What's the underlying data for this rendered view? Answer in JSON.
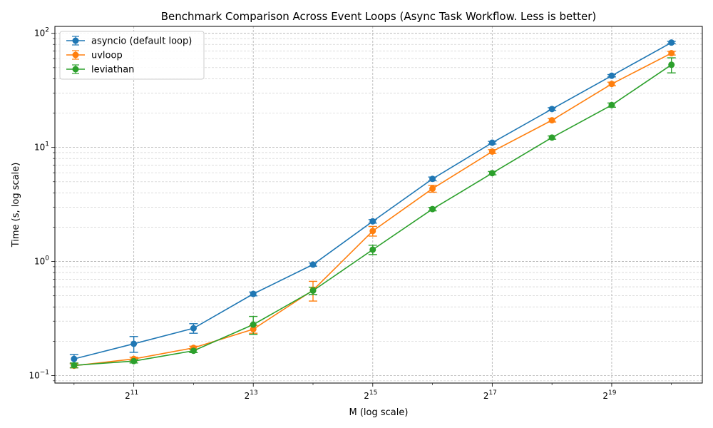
{
  "chart_data": {
    "type": "line",
    "title": "Benchmark Comparison Across Event Loops (Async Task Workflow. Less is better)",
    "xlabel": "M (log scale)",
    "ylabel": "Time (s, log scale)",
    "x_scale": "log2",
    "y_scale": "log10",
    "x": [
      1024,
      2048,
      4096,
      8192,
      16384,
      32768,
      65536,
      131072,
      262144,
      524288,
      1048576
    ],
    "x_ticks": [
      {
        "value": 2048,
        "base": "2",
        "exp": "11"
      },
      {
        "value": 8192,
        "base": "2",
        "exp": "13"
      },
      {
        "value": 32768,
        "base": "2",
        "exp": "15"
      },
      {
        "value": 131072,
        "base": "2",
        "exp": "17"
      },
      {
        "value": 524288,
        "base": "2",
        "exp": "19"
      }
    ],
    "y_ticks": [
      {
        "value": 0.1,
        "base": "10",
        "exp": "−1"
      },
      {
        "value": 1,
        "base": "10",
        "exp": "0"
      },
      {
        "value": 10,
        "base": "10",
        "exp": "1"
      },
      {
        "value": 100,
        "base": "10",
        "exp": "2"
      }
    ],
    "xlim": [
      820,
      1500000
    ],
    "ylim": [
      0.086,
      115
    ],
    "grid": true,
    "legend_position": "top-left",
    "series": [
      {
        "name": "asyncio (default loop)",
        "color": "#1f77b4",
        "values": [
          0.14,
          0.19,
          0.26,
          0.52,
          0.94,
          2.25,
          5.3,
          11.0,
          21.7,
          42.5,
          83.0
        ],
        "err": [
          0.013,
          0.03,
          0.025,
          0.02,
          0.03,
          0.08,
          0.2,
          0.3,
          0.6,
          1.0,
          2.0
        ]
      },
      {
        "name": "uvloop",
        "color": "#ff7f0e",
        "values": [
          0.122,
          0.14,
          0.175,
          0.255,
          0.56,
          1.85,
          4.35,
          9.2,
          17.3,
          36.0,
          67.0
        ],
        "err": [
          0.005,
          0.005,
          0.006,
          0.02,
          0.11,
          0.18,
          0.3,
          0.35,
          0.6,
          1.3,
          2.5
        ]
      },
      {
        "name": "leviathan",
        "color": "#2ca02c",
        "values": [
          0.123,
          0.134,
          0.165,
          0.28,
          0.555,
          1.27,
          2.88,
          5.95,
          12.2,
          23.5,
          53.0
        ],
        "err": [
          0.006,
          0.005,
          0.006,
          0.05,
          0.04,
          0.12,
          0.1,
          0.2,
          0.4,
          1.0,
          8.0
        ]
      }
    ]
  }
}
